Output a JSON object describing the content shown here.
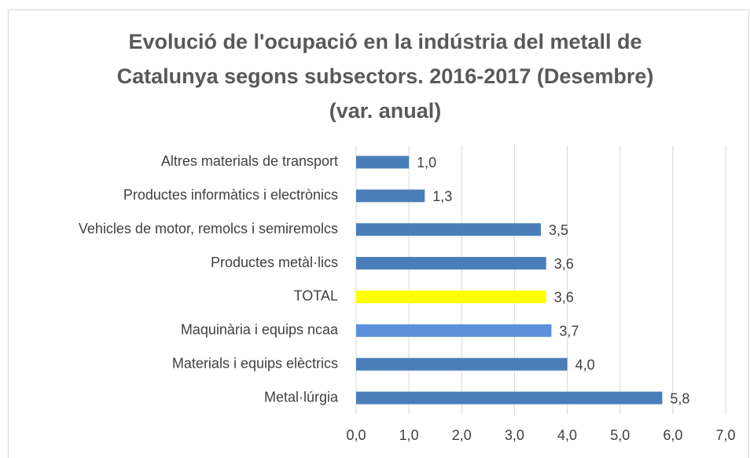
{
  "chart_data": {
    "type": "bar",
    "orientation": "horizontal",
    "title": [
      "Evolució de l'ocupació en la indústria del metall de",
      "Catalunya segons subsectors. 2016-2017  (Desembre)",
      "(var. anual)"
    ],
    "categories": [
      "Altres materials de transport",
      "Productes informàtics i electrònics",
      "Vehicles de motor, remolcs i semiremolcs",
      "Productes metàl·lics",
      "TOTAL",
      "Maquinària i equips ncaa",
      "Materials i equips elèctrics",
      "Metal·lúrgia"
    ],
    "values": [
      1.0,
      1.3,
      3.5,
      3.6,
      3.6,
      3.7,
      4.0,
      5.8
    ],
    "value_labels": [
      "1,0",
      "1,3",
      "3,5",
      "3,6",
      "3,6",
      "3,7",
      "4,0",
      "5,8"
    ],
    "colors": [
      "#4a7ebb",
      "#4a7ebb",
      "#4a7ebb",
      "#4a7ebb",
      "#ffff00",
      "#5b8fd9",
      "#4a7ebb",
      "#4a7ebb"
    ],
    "xlim": [
      0,
      7
    ],
    "xticks": [
      {
        "value": 0,
        "label": "0,0"
      },
      {
        "value": 1,
        "label": "1,0"
      },
      {
        "value": 2,
        "label": "2,0"
      },
      {
        "value": 3,
        "label": "3,0"
      },
      {
        "value": 4,
        "label": "4,0"
      },
      {
        "value": 5,
        "label": "5,0"
      },
      {
        "value": 6,
        "label": "6,0"
      },
      {
        "value": 7,
        "label": "7,0"
      }
    ],
    "grid": true
  }
}
